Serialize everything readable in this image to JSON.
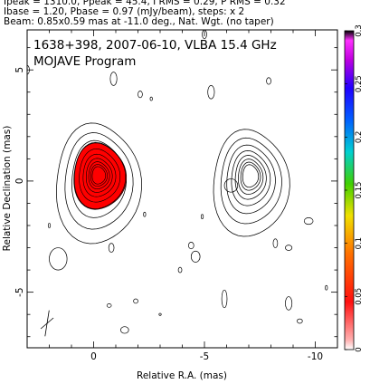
{
  "header": {
    "line1": "Ipeak = 1310.0, Ppeak = 45.4, I RMS = 0.29, P RMS = 0.32",
    "line2": "Ibase = 1.20, Pbase = 0.97 (mJy/beam), steps: x 2",
    "line3": "Beam: 0.85x0.59 mas at -11.0 deg., Nat. Wgt. (no taper)"
  },
  "chart_data": {
    "type": "heatmap",
    "title": "1638+398, 2007-06-10, VLBA 15.4 GHz",
    "subtitle": "MOJAVE Program",
    "xlabel": "Relative R.A. (mas)",
    "ylabel": "Relative Declination (mas)",
    "xlim": [
      3,
      -11
    ],
    "ylim": [
      -7.5,
      6.8
    ],
    "x_ticks": [
      0,
      -5,
      -10
    ],
    "y_ticks": [
      5,
      0,
      -5
    ],
    "x_tick_labels": [
      "0",
      "-5",
      "-10"
    ],
    "y_tick_labels": [
      "5",
      "0",
      "-5"
    ],
    "colorbar": {
      "min": 0,
      "max": 0.3,
      "ticks": [
        0,
        0.05,
        0.1,
        0.15,
        0.2,
        0.25,
        0.3
      ],
      "tick_labels": [
        "0",
        "0.05",
        "0.1",
        "0.15",
        "0.2",
        "0.25",
        "0.3"
      ]
    },
    "components": [
      {
        "x": -0.1,
        "y": 0.1,
        "rx": 1.9,
        "ry": 2.7,
        "levels": 11,
        "color": "#ff0000"
      },
      {
        "x": -7.0,
        "y": 0.1,
        "rx": 1.7,
        "ry": 2.4,
        "levels": 8,
        "color": "#ff0000"
      }
    ],
    "beam": {
      "x": 2.1,
      "y": -6.4,
      "major": 0.85,
      "minor": 0.59,
      "pa_deg": -11.0
    }
  }
}
